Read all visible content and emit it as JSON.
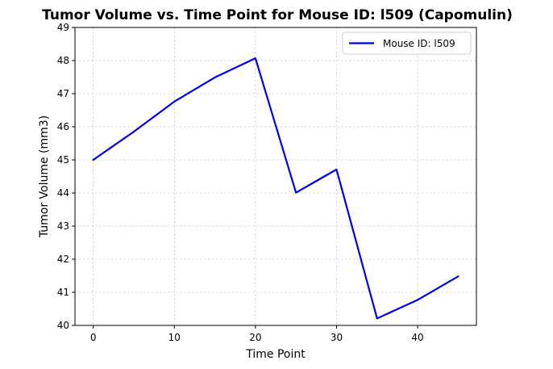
{
  "chart_data": {
    "type": "line",
    "title": "Tumor Volume vs. Time Point for Mouse ID: l509 (Capomulin)",
    "xlabel": "Time Point",
    "ylabel": "Tumor Volume (mm3)",
    "xlim": [
      -2.25,
      47.25
    ],
    "ylim": [
      40,
      49
    ],
    "xticks": [
      0,
      10,
      20,
      30,
      40
    ],
    "yticks": [
      40,
      41,
      42,
      43,
      44,
      45,
      46,
      47,
      48,
      49
    ],
    "grid": true,
    "legend_position": "top-right",
    "series": [
      {
        "name": "Mouse ID: l509",
        "color": "#0000e6",
        "x": [
          0,
          5,
          10,
          15,
          20,
          25,
          30,
          35,
          40,
          45
        ],
        "y": [
          45.0,
          45.85,
          46.76,
          47.49,
          48.07,
          44.01,
          44.71,
          40.21,
          40.77,
          41.48
        ]
      }
    ]
  }
}
